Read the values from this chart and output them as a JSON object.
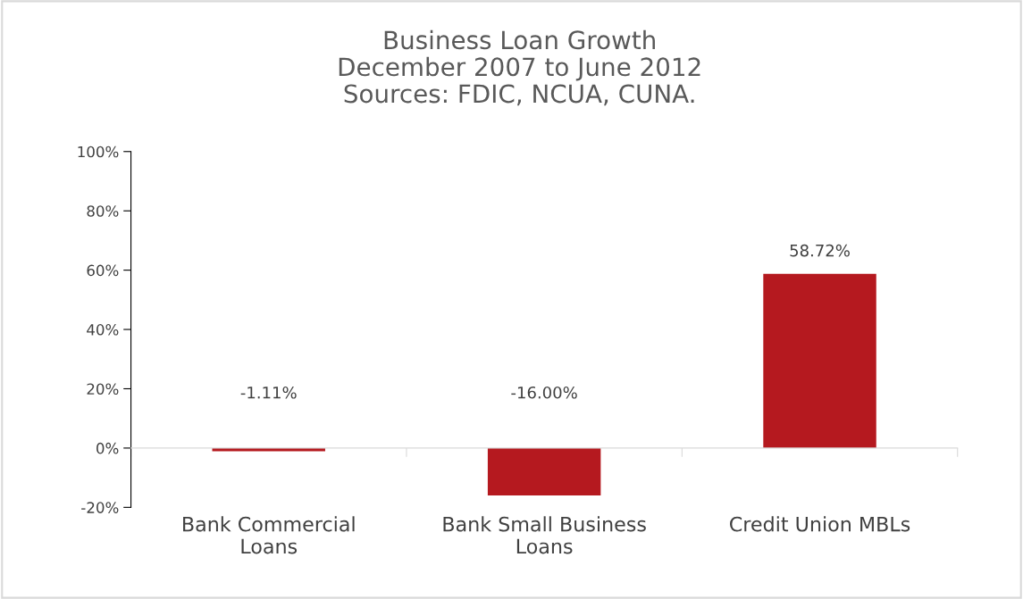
{
  "chart_data": {
    "type": "bar",
    "title": "Business Loan Growth\nDecember 2007 to June 2012\nSources: FDIC, NCUA, CUNA.",
    "categories": [
      "Bank Commercial\nLoans",
      "Bank Small Business\nLoans",
      "Credit Union MBLs"
    ],
    "values": [
      -1.11,
      -16.0,
      58.72
    ],
    "color": "#b5191f",
    "value_labels": [
      "-1.11%",
      "-16.00%",
      "58.72%"
    ],
    "ylim": [
      -20,
      100
    ],
    "yticks": [
      {
        "value": -20,
        "label": "-20%"
      },
      {
        "value": 0,
        "label": "0%"
      },
      {
        "value": 20,
        "label": "20%"
      },
      {
        "value": 40,
        "label": "40%"
      },
      {
        "value": 60,
        "label": "60%"
      },
      {
        "value": 80,
        "label": "80%"
      },
      {
        "value": 100,
        "label": "100%"
      }
    ],
    "legend": false
  }
}
